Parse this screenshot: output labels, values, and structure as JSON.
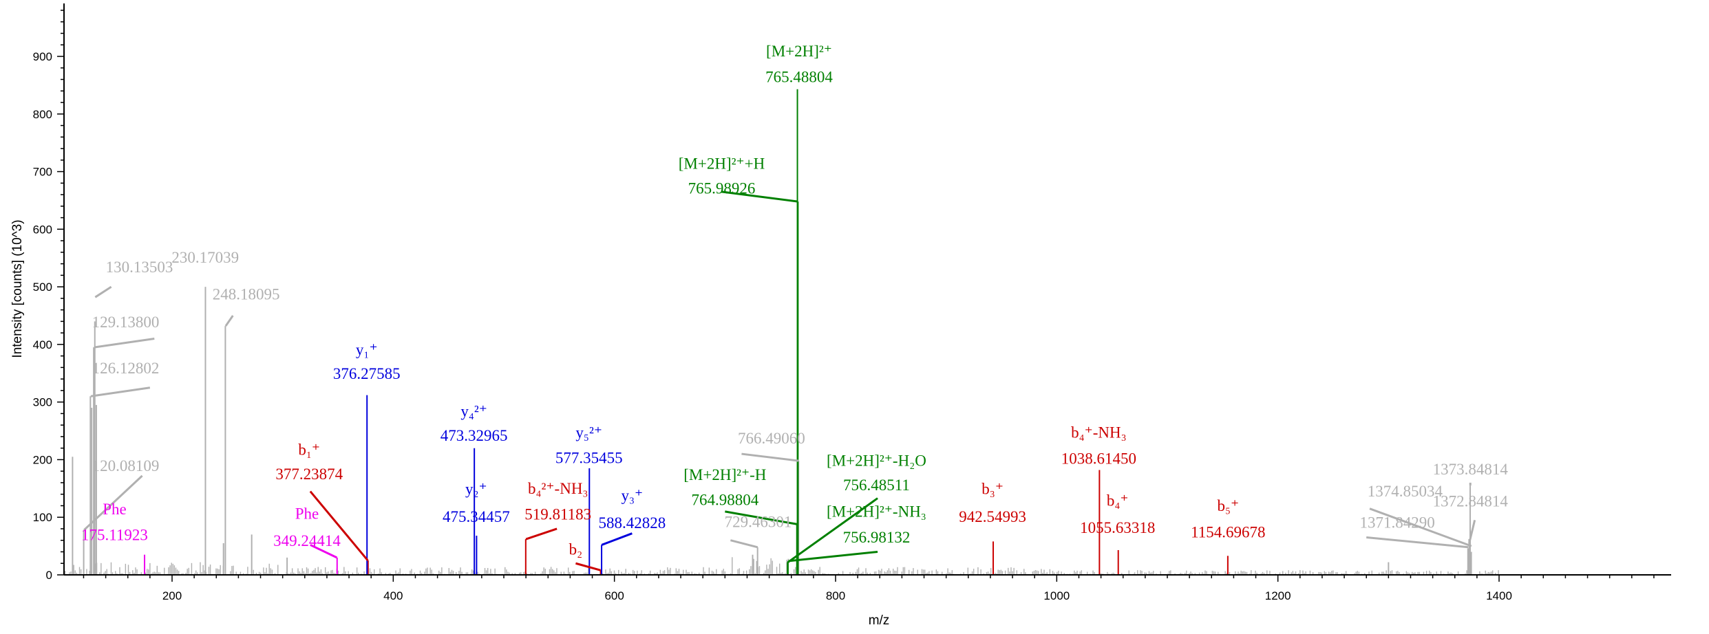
{
  "chart_data": {
    "type": "spectrum",
    "xlabel": "m/z",
    "ylabel": "Intensity [counts] (10^3)",
    "xlim": [
      100,
      1560
    ],
    "ylim": [
      0,
      990
    ],
    "xticks": [
      "200",
      "400",
      "600",
      "800",
      "1000",
      "1200",
      "1400"
    ],
    "yticks": [
      "0",
      "100",
      "200",
      "300",
      "400",
      "500",
      "600",
      "700",
      "800",
      "900"
    ],
    "colors": {
      "unassigned": "#b0b0b0",
      "b_ion": "#cc0000",
      "y_ion": "#0000dd",
      "precursor": "#008000",
      "immonium": "#ee00ee"
    },
    "peaks": [
      {
        "mz": 120.08,
        "intensity": 78,
        "group": "unassigned"
      },
      {
        "mz": 126.13,
        "intensity": 310,
        "group": "unassigned"
      },
      {
        "mz": 127.3,
        "intensity": 290,
        "group": "unassigned"
      },
      {
        "mz": 129.14,
        "intensity": 395,
        "group": "unassigned"
      },
      {
        "mz": 130.14,
        "intensity": 440,
        "group": "unassigned"
      },
      {
        "mz": 131.5,
        "intensity": 295,
        "group": "unassigned"
      },
      {
        "mz": 110,
        "intensity": 205,
        "group": "unassigned"
      },
      {
        "mz": 230.17,
        "intensity": 500,
        "group": "unassigned"
      },
      {
        "mz": 248.18,
        "intensity": 432,
        "group": "unassigned"
      },
      {
        "mz": 246.5,
        "intensity": 55,
        "group": "unassigned"
      },
      {
        "mz": 272,
        "intensity": 70,
        "group": "unassigned"
      },
      {
        "mz": 304,
        "intensity": 30,
        "group": "unassigned"
      },
      {
        "mz": 729.46,
        "intensity": 48,
        "group": "unassigned"
      },
      {
        "mz": 725,
        "intensity": 35,
        "group": "unassigned"
      },
      {
        "mz": 766.49,
        "intensity": 198,
        "group": "unassigned"
      },
      {
        "mz": 1300,
        "intensity": 22,
        "group": "unassigned"
      },
      {
        "mz": 1371.84,
        "intensity": 46,
        "group": "unassigned"
      },
      {
        "mz": 1372.85,
        "intensity": 62,
        "group": "unassigned"
      },
      {
        "mz": 1373.85,
        "intensity": 155,
        "group": "unassigned"
      },
      {
        "mz": 1374.85,
        "intensity": 40,
        "group": "unassigned"
      },
      {
        "mz": 175.12,
        "intensity": 35,
        "group": "immonium"
      },
      {
        "mz": 349.24,
        "intensity": 30,
        "group": "immonium"
      },
      {
        "mz": 377.24,
        "intensity": 25,
        "group": "b_ion"
      },
      {
        "mz": 519.81,
        "intensity": 62,
        "group": "b_ion"
      },
      {
        "mz": 587.5,
        "intensity": 8,
        "group": "b_ion"
      },
      {
        "mz": 942.55,
        "intensity": 58,
        "group": "b_ion"
      },
      {
        "mz": 1038.61,
        "intensity": 182,
        "group": "b_ion"
      },
      {
        "mz": 1055.63,
        "intensity": 43,
        "group": "b_ion"
      },
      {
        "mz": 1154.7,
        "intensity": 33,
        "group": "b_ion"
      },
      {
        "mz": 376.28,
        "intensity": 312,
        "group": "y_ion"
      },
      {
        "mz": 473.33,
        "intensity": 220,
        "group": "y_ion"
      },
      {
        "mz": 475.34,
        "intensity": 68,
        "group": "y_ion"
      },
      {
        "mz": 577.35,
        "intensity": 185,
        "group": "y_ion"
      },
      {
        "mz": 588.43,
        "intensity": 52,
        "group": "y_ion"
      },
      {
        "mz": 765.49,
        "intensity": 843,
        "group": "precursor"
      },
      {
        "mz": 765.99,
        "intensity": 648,
        "group": "precursor"
      },
      {
        "mz": 764.99,
        "intensity": 88,
        "group": "precursor"
      },
      {
        "mz": 756.49,
        "intensity": 22,
        "group": "precursor"
      },
      {
        "mz": 756.98,
        "intensity": 24,
        "group": "precursor"
      }
    ],
    "annotations": [
      {
        "group": "unassigned",
        "lines": [
          "130.13503"
        ],
        "tx": 140,
        "ty": 525,
        "anchor": "start",
        "conn": [
          130.5,
          482,
          145,
          500
        ]
      },
      {
        "group": "unassigned",
        "lines": [
          "230.17039"
        ],
        "tx": 230,
        "ty": 542,
        "anchor": "middle",
        "conn": null
      },
      {
        "group": "unassigned",
        "lines": [
          "248.18095"
        ],
        "tx": 267,
        "ty": 478,
        "anchor": "middle",
        "conn": [
          248.5,
          432,
          255,
          450
        ]
      },
      {
        "group": "unassigned",
        "lines": [
          "129.13800"
        ],
        "tx": 158,
        "ty": 430,
        "anchor": "middle",
        "conn": [
          129.5,
          395,
          184,
          410
        ]
      },
      {
        "group": "unassigned",
        "lines": [
          "126.12802"
        ],
        "tx": 158,
        "ty": 350,
        "anchor": "middle",
        "conn": [
          126.5,
          310,
          180,
          325
        ]
      },
      {
        "group": "unassigned",
        "lines": [
          "120.08109"
        ],
        "tx": 158,
        "ty": 180,
        "anchor": "middle",
        "conn": [
          120.5,
          78,
          173,
          172
        ]
      },
      {
        "group": "immonium",
        "lines": [
          "Phe",
          "175.11923"
        ],
        "tx": 148,
        "ty": 105,
        "anchor": "middle",
        "gap": 45,
        "conn": null
      },
      {
        "group": "immonium",
        "lines": [
          "Phe",
          "349.24414"
        ],
        "tx": 322,
        "ty": 97,
        "anchor": "middle",
        "gap": 47,
        "conn": [
          349,
          30,
          325,
          52
        ]
      },
      {
        "group": "b_ion",
        "lines": [
          "b₁⁺",
          "377.23874"
        ],
        "tx": 324,
        "ty": 208,
        "anchor": "middle",
        "gap": 42,
        "conn": [
          377,
          25,
          325,
          145
        ]
      },
      {
        "group": "y_ion",
        "lines": [
          "y₁⁺",
          "376.27585"
        ],
        "tx": 376,
        "ty": 382,
        "anchor": "middle",
        "gap": 42,
        "conn": null
      },
      {
        "group": "y_ion",
        "lines": [
          "y₄²⁺",
          "473.32965"
        ],
        "tx": 473,
        "ty": 275,
        "anchor": "middle",
        "gap": 42,
        "conn": null
      },
      {
        "group": "y_ion",
        "lines": [
          "y₂⁺",
          "475.34457"
        ],
        "tx": 475,
        "ty": 140,
        "anchor": "middle",
        "gap": 48,
        "conn": null
      },
      {
        "group": "b_ion",
        "lines": [
          "b₄²⁺-NH₃",
          "519.81183"
        ],
        "tx": 549,
        "ty": 141,
        "anchor": "middle",
        "gap": 45,
        "conn": [
          520,
          62,
          548,
          80
        ]
      },
      {
        "group": "y_ion",
        "lines": [
          "y₅²⁺",
          "577.35455"
        ],
        "tx": 577,
        "ty": 238,
        "anchor": "middle",
        "gap": 44,
        "conn": null
      },
      {
        "group": "y_ion",
        "lines": [
          "y₃⁺",
          "588.42828"
        ],
        "tx": 616,
        "ty": 129,
        "anchor": "middle",
        "gap": 48,
        "conn": [
          588.5,
          52,
          616,
          72
        ]
      },
      {
        "group": "b_ion",
        "lines": [
          "b₂"
        ],
        "tx": 565,
        "ty": 35,
        "anchor": "middle",
        "conn": [
          587.5,
          8,
          565,
          20
        ]
      },
      {
        "group": "precursor",
        "lines": [
          "[M+2H]²⁺",
          "765.48804"
        ],
        "tx": 767,
        "ty": 900,
        "anchor": "middle",
        "gap": 45,
        "conn": null
      },
      {
        "group": "precursor",
        "lines": [
          "[M+2H]²⁺+H",
          "765.98926"
        ],
        "tx": 697,
        "ty": 705,
        "anchor": "middle",
        "gap": 43,
        "conn": [
          766,
          648,
          697,
          665
        ]
      },
      {
        "group": "unassigned",
        "lines": [
          "766.49060"
        ],
        "tx": 742,
        "ty": 228,
        "anchor": "middle",
        "conn": [
          766.5,
          198,
          715,
          210
        ]
      },
      {
        "group": "precursor",
        "lines": [
          "[M+2H]²⁺-H",
          "764.98804"
        ],
        "tx": 700,
        "ty": 165,
        "anchor": "middle",
        "gap": 44,
        "conn": [
          765,
          88,
          700,
          110
        ]
      },
      {
        "group": "unassigned",
        "lines": [
          "729.46301"
        ],
        "tx": 730,
        "ty": 83,
        "anchor": "middle",
        "conn": [
          729.5,
          48,
          705,
          60
        ]
      },
      {
        "group": "precursor",
        "lines": [
          "[M+2H]²⁺-H₂O",
          "756.48511"
        ],
        "tx": 837,
        "ty": 189,
        "anchor": "middle",
        "gap": 42,
        "conn": [
          757,
          22,
          838,
          133
        ]
      },
      {
        "group": "precursor",
        "lines": [
          "[M+2H]²⁺-NH₃",
          "756.98132"
        ],
        "tx": 837,
        "ty": 101,
        "anchor": "middle",
        "gap": 45,
        "conn": [
          757.5,
          24,
          838,
          40
        ]
      },
      {
        "group": "b_ion",
        "lines": [
          "b₃⁺",
          "942.54993"
        ],
        "tx": 942,
        "ty": 140,
        "anchor": "middle",
        "gap": 48,
        "conn": null
      },
      {
        "group": "b_ion",
        "lines": [
          "b₄⁺-NH₃",
          "1038.61450"
        ],
        "tx": 1038,
        "ty": 238,
        "anchor": "middle",
        "gap": 45,
        "conn": null
      },
      {
        "group": "b_ion",
        "lines": [
          "b₄⁺",
          "1055.63318"
        ],
        "tx": 1055,
        "ty": 120,
        "anchor": "middle",
        "gap": 47,
        "conn": null
      },
      {
        "group": "b_ion",
        "lines": [
          "b₅⁺",
          "1154.69678"
        ],
        "tx": 1155,
        "ty": 111,
        "anchor": "middle",
        "gap": 46,
        "conn": null
      },
      {
        "group": "unassigned",
        "lines": [
          "1373.84814"
        ],
        "tx": 1374,
        "ty": 174,
        "anchor": "middle",
        "conn": [
          1374,
          155,
          1374,
          160
        ]
      },
      {
        "group": "unassigned",
        "lines": [
          "1374.85034"
        ],
        "tx": 1315,
        "ty": 136,
        "anchor": "middle",
        "conn": [
          1375,
          50,
          1283,
          115
        ]
      },
      {
        "group": "unassigned",
        "lines": [
          "1372.84814"
        ],
        "tx": 1374,
        "ty": 119,
        "anchor": "middle",
        "conn": [
          1373,
          55,
          1378,
          95
        ]
      },
      {
        "group": "unassigned",
        "lines": [
          "1371.84290"
        ],
        "tx": 1308,
        "ty": 82,
        "anchor": "middle",
        "conn": [
          1372,
          48,
          1280,
          65
        ]
      }
    ]
  }
}
